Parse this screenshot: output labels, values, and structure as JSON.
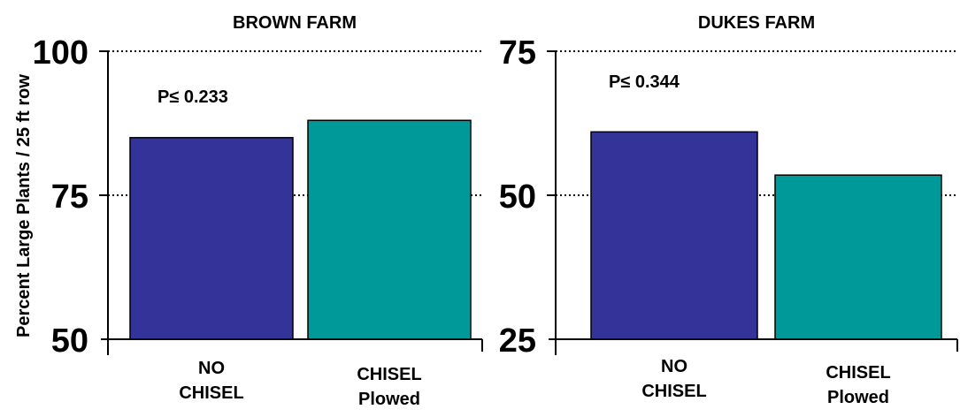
{
  "ylabel": "Percent Large Plants / 25 ft row",
  "colors": {
    "no_chisel": "#333399",
    "chisel_plowed": "#009999"
  },
  "chart_data": [
    {
      "type": "bar",
      "title": "BROWN FARM",
      "categories": [
        [
          "NO",
          "CHISEL"
        ],
        [
          "CHISEL",
          "Plowed"
        ]
      ],
      "values": [
        85,
        88
      ],
      "ylim": [
        50,
        100
      ],
      "yticks": [
        "50",
        "75",
        "100"
      ],
      "annotation": "P≤ 0.233",
      "grid": "dotted at 75 and 100"
    },
    {
      "type": "bar",
      "title": "DUKES FARM",
      "categories": [
        [
          "NO",
          "CHISEL"
        ],
        [
          "CHISEL",
          "Plowed"
        ]
      ],
      "values": [
        61,
        53.5
      ],
      "ylim": [
        25,
        75
      ],
      "yticks": [
        "25",
        "50",
        "75"
      ],
      "annotation": "P≤ 0.344",
      "grid": "dotted at 50 and 75"
    }
  ]
}
